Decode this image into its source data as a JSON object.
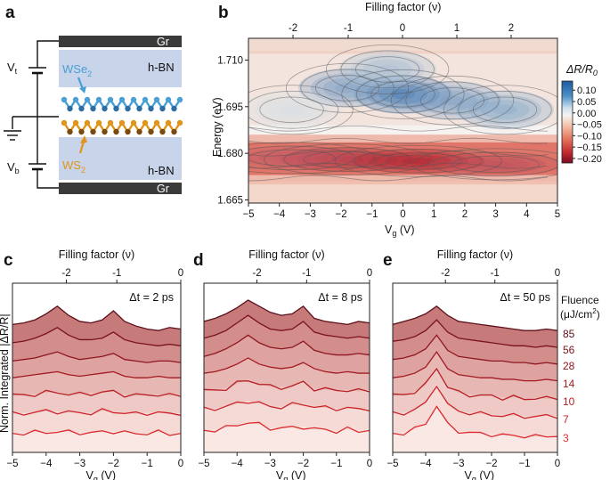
{
  "panels": {
    "a": "a",
    "b": "b",
    "c": "c",
    "d": "d",
    "e": "e"
  },
  "device": {
    "layers": [
      "Gr",
      "h-BN",
      "WSe2",
      "WS2",
      "h-BN",
      "Gr"
    ],
    "gr_top": "Gr",
    "hbn_top": "h-BN",
    "wse2": "WSe",
    "wse2_sub": "2",
    "ws2": "WS",
    "ws2_sub": "2",
    "hbn_bottom": "h-BN",
    "gr_bottom": "Gr",
    "vt": "V",
    "vt_sub": "t",
    "vb": "V",
    "vb_sub": "b",
    "colors": {
      "wse2": "#4a9fd4",
      "ws2": "#e0951a",
      "hbn": "#c8d4ea",
      "gr": "#3a3a3a"
    }
  },
  "chart_data": [
    {
      "panel": "b",
      "type": "heatmap",
      "title": "",
      "xlabel": "Vg (V)",
      "ylabel": "Energy (eV)",
      "top_xlabel": "Filling factor (ν)",
      "x_ticks": [
        "−5",
        "−4",
        "−3",
        "−2",
        "−1",
        "0",
        "1",
        "2",
        "3",
        "4",
        "5"
      ],
      "y_ticks": [
        "1.710",
        "1.695",
        "1.680",
        "1.665"
      ],
      "top_ticks": [
        "-2",
        "-1",
        "0",
        "1",
        "2"
      ],
      "xlim": [
        -5,
        5
      ],
      "ylim": [
        1.664,
        1.717
      ],
      "colorbar": {
        "label": "ΔR/R",
        "label_sub": "0",
        "ticks": [
          "0.10",
          "0.05",
          "0.00",
          "−0.05",
          "−0.10",
          "−0.15",
          "−0.20"
        ],
        "range": [
          -0.22,
          0.14
        ]
      },
      "features": [
        {
          "x": 0.0,
          "y": 1.699,
          "value": 0.12
        },
        {
          "x": -1.8,
          "y": 1.701,
          "value": 0.08
        },
        {
          "x": 1.6,
          "y": 1.697,
          "value": 0.08
        },
        {
          "x": 3.3,
          "y": 1.694,
          "value": 0.07
        },
        {
          "x": -0.5,
          "y": 1.707,
          "value": 0.05
        },
        {
          "x": -3.6,
          "y": 1.694,
          "value": 0.02
        },
        {
          "x": 0.5,
          "y": 1.6775,
          "value": -0.21
        },
        {
          "x": -1.8,
          "y": 1.678,
          "value": -0.19
        },
        {
          "x": -3.6,
          "y": 1.6785,
          "value": -0.15
        },
        {
          "x": 3.0,
          "y": 1.6765,
          "value": -0.16
        }
      ]
    },
    {
      "panel": "c",
      "type": "line",
      "title": "Δt = 2 ps",
      "xlabel": "Vg (V)",
      "ylabel": "Norm. Integrated |ΔR/R|",
      "top_xlabel": "Filling factor (ν)",
      "x_ticks": [
        "−5",
        "−4",
        "−3",
        "−2",
        "−1",
        "0"
      ],
      "top_ticks": [
        "-2",
        "-1",
        "0"
      ],
      "xlim": [
        -5,
        0
      ],
      "series": [
        {
          "name": "85",
          "levels": [
            0.84,
            0.85,
            0.87,
            0.91,
            0.96,
            0.9,
            0.86,
            0.85,
            0.87,
            0.93,
            0.86,
            0.83,
            0.81,
            0.8,
            0.82,
            0.81
          ]
        },
        {
          "name": "56",
          "levels": [
            0.72,
            0.73,
            0.75,
            0.78,
            0.82,
            0.77,
            0.74,
            0.74,
            0.75,
            0.79,
            0.74,
            0.72,
            0.71,
            0.7,
            0.71,
            0.7
          ]
        },
        {
          "name": "28",
          "levels": [
            0.6,
            0.61,
            0.62,
            0.64,
            0.66,
            0.63,
            0.61,
            0.62,
            0.63,
            0.65,
            0.61,
            0.6,
            0.59,
            0.6,
            0.6,
            0.59
          ]
        },
        {
          "name": "14",
          "levels": [
            0.49,
            0.5,
            0.51,
            0.52,
            0.53,
            0.51,
            0.5,
            0.51,
            0.52,
            0.53,
            0.5,
            0.49,
            0.49,
            0.5,
            0.49,
            0.49
          ]
        },
        {
          "name": "10",
          "levels": [
            0.37,
            0.38,
            0.38,
            0.39,
            0.4,
            0.38,
            0.38,
            0.39,
            0.39,
            0.4,
            0.38,
            0.37,
            0.38,
            0.38,
            0.37,
            0.38
          ]
        },
        {
          "name": "7",
          "levels": [
            0.25,
            0.26,
            0.26,
            0.27,
            0.27,
            0.26,
            0.26,
            0.26,
            0.27,
            0.27,
            0.26,
            0.25,
            0.26,
            0.26,
            0.25,
            0.26
          ]
        },
        {
          "name": "3",
          "levels": [
            0.12,
            0.13,
            0.13,
            0.13,
            0.14,
            0.13,
            0.13,
            0.13,
            0.13,
            0.14,
            0.13,
            0.12,
            0.13,
            0.13,
            0.12,
            0.13
          ]
        }
      ]
    },
    {
      "panel": "d",
      "type": "line",
      "title": "Δt = 8 ps",
      "xlabel": "Vg (V)",
      "ylabel": "",
      "top_xlabel": "Filling factor (ν)",
      "x_ticks": [
        "−5",
        "−4",
        "−3",
        "−2",
        "−1",
        "0"
      ],
      "top_ticks": [
        "-2",
        "-1",
        "0"
      ],
      "xlim": [
        -5,
        0
      ],
      "series": [
        {
          "name": "85",
          "levels": [
            0.86,
            0.88,
            0.91,
            0.95,
            1.0,
            0.96,
            0.92,
            0.9,
            0.91,
            0.96,
            0.88,
            0.86,
            0.85,
            0.84,
            0.86,
            0.85
          ]
        },
        {
          "name": "56",
          "levels": [
            0.75,
            0.77,
            0.8,
            0.85,
            0.9,
            0.85,
            0.81,
            0.8,
            0.81,
            0.86,
            0.79,
            0.77,
            0.76,
            0.75,
            0.76,
            0.75
          ]
        },
        {
          "name": "28",
          "levels": [
            0.63,
            0.65,
            0.68,
            0.72,
            0.77,
            0.72,
            0.69,
            0.68,
            0.69,
            0.73,
            0.67,
            0.65,
            0.64,
            0.64,
            0.65,
            0.64
          ]
        },
        {
          "name": "14",
          "levels": [
            0.52,
            0.53,
            0.55,
            0.58,
            0.62,
            0.58,
            0.56,
            0.55,
            0.56,
            0.59,
            0.55,
            0.53,
            0.52,
            0.53,
            0.52,
            0.52
          ]
        },
        {
          "name": "10",
          "levels": [
            0.4,
            0.41,
            0.42,
            0.45,
            0.48,
            0.45,
            0.43,
            0.43,
            0.43,
            0.46,
            0.42,
            0.41,
            0.41,
            0.41,
            0.4,
            0.41
          ]
        },
        {
          "name": "7",
          "levels": [
            0.28,
            0.29,
            0.3,
            0.32,
            0.34,
            0.32,
            0.3,
            0.3,
            0.31,
            0.32,
            0.3,
            0.29,
            0.29,
            0.29,
            0.28,
            0.29
          ]
        },
        {
          "name": "3",
          "levels": [
            0.14,
            0.15,
            0.16,
            0.18,
            0.2,
            0.18,
            0.16,
            0.16,
            0.16,
            0.17,
            0.15,
            0.15,
            0.14,
            0.15,
            0.14,
            0.15
          ]
        }
      ]
    },
    {
      "panel": "e",
      "type": "line",
      "title": "Δt = 50 ps",
      "xlabel": "Vg (V)",
      "ylabel": "",
      "top_xlabel": "Filling factor (ν)",
      "x_ticks": [
        "−5",
        "−4",
        "−3",
        "−2",
        "−1",
        "0"
      ],
      "top_ticks": [
        "-2",
        "-1",
        "0"
      ],
      "xlim": [
        -5,
        0
      ],
      "series": [
        {
          "name": "85",
          "levels": [
            0.84,
            0.86,
            0.88,
            0.91,
            0.96,
            0.9,
            0.86,
            0.85,
            0.84,
            0.83,
            0.82,
            0.81,
            0.8,
            0.8,
            0.81,
            0.8
          ]
        },
        {
          "name": "56",
          "levels": [
            0.73,
            0.74,
            0.76,
            0.8,
            0.87,
            0.79,
            0.75,
            0.74,
            0.73,
            0.72,
            0.71,
            0.7,
            0.7,
            0.69,
            0.7,
            0.69
          ]
        },
        {
          "name": "28",
          "levels": [
            0.61,
            0.62,
            0.64,
            0.68,
            0.77,
            0.67,
            0.63,
            0.62,
            0.61,
            0.6,
            0.6,
            0.59,
            0.59,
            0.58,
            0.59,
            0.58
          ]
        },
        {
          "name": "14",
          "levels": [
            0.49,
            0.5,
            0.52,
            0.56,
            0.66,
            0.55,
            0.51,
            0.5,
            0.49,
            0.49,
            0.48,
            0.48,
            0.47,
            0.47,
            0.48,
            0.47
          ]
        },
        {
          "name": "10",
          "levels": [
            0.37,
            0.38,
            0.4,
            0.44,
            0.56,
            0.43,
            0.39,
            0.38,
            0.37,
            0.37,
            0.36,
            0.36,
            0.35,
            0.36,
            0.35,
            0.36
          ]
        },
        {
          "name": "7",
          "levels": [
            0.25,
            0.26,
            0.28,
            0.32,
            0.45,
            0.31,
            0.27,
            0.26,
            0.25,
            0.25,
            0.24,
            0.24,
            0.24,
            0.23,
            0.24,
            0.24
          ]
        },
        {
          "name": "3",
          "levels": [
            0.12,
            0.13,
            0.15,
            0.19,
            0.31,
            0.18,
            0.14,
            0.13,
            0.12,
            0.12,
            0.11,
            0.11,
            0.11,
            0.1,
            0.11,
            0.11
          ]
        }
      ]
    }
  ],
  "legend": {
    "title": "Fluence",
    "unit": "(μJ/cm",
    "unit_sup": "2",
    "unit_end": ")",
    "values": [
      "85",
      "56",
      "28",
      "14",
      "10",
      "7",
      "3"
    ]
  },
  "labels": {
    "c_ylabel": "Norm. Integrated |ΔR/R|",
    "vg": "V",
    "vg_sub": "g",
    "vg_unit": " (V)",
    "filling": "Filling factor (ν)",
    "energy": "Energy (eV)"
  }
}
